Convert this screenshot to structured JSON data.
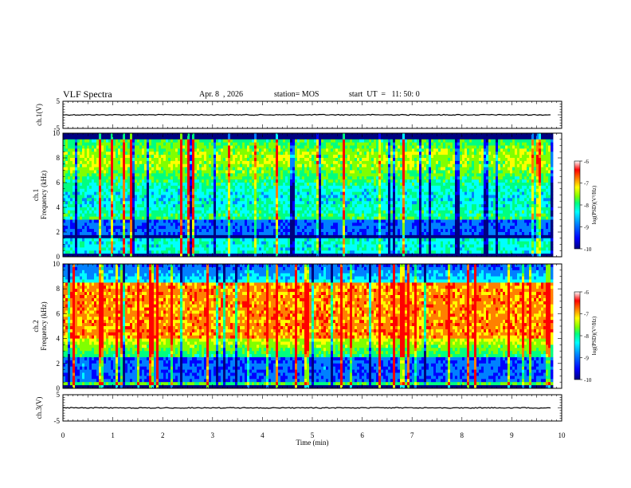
{
  "header": {
    "title": "VLF Spectra",
    "date": "Apr. 8  , 2026",
    "station": "station= MOS",
    "start": "start  UT  =   11: 50: 0"
  },
  "chart_data": [
    {
      "type": "line",
      "panel": "ch1-waveform",
      "ylabel": "ch.1(V)",
      "ylim": [
        -5,
        5
      ],
      "yticks": [
        "5",
        "-5"
      ],
      "xlim": [
        0,
        10
      ],
      "x_end": 9.8,
      "level": 0.0
    },
    {
      "type": "heatmap",
      "panel": "ch1-spectrogram",
      "ylabel": "ch.1\nFrequency (kHz)",
      "ylabel_lines": [
        "ch.1",
        "Frequency (kHz)"
      ],
      "ylim": [
        0,
        10
      ],
      "yticks": [
        "0",
        "2",
        "4",
        "6",
        "8",
        "10"
      ],
      "xlim": [
        0,
        10
      ],
      "x_end": 9.8,
      "colorbar": {
        "label": "log(PSD)(V²/Hz)",
        "ticks": [
          "-6",
          "-7",
          "-8",
          "-9",
          "-10"
        ],
        "range": [
          -10,
          -6
        ]
      }
    },
    {
      "type": "heatmap",
      "panel": "ch2-spectrogram",
      "ylabel": "ch.2\nFrequency (kHz)",
      "ylabel_lines": [
        "ch.2",
        "Frequency (kHz)"
      ],
      "ylim": [
        0,
        10
      ],
      "yticks": [
        "0",
        "2",
        "4",
        "6",
        "8",
        "10"
      ],
      "xlim": [
        0,
        10
      ],
      "x_end": 9.8,
      "colorbar": {
        "label": "log(PSD)(V²/Hz)",
        "ticks": [
          "-6",
          "-7",
          "-8",
          "-9",
          "-10"
        ],
        "range": [
          -10,
          -6
        ]
      }
    },
    {
      "type": "line",
      "panel": "ch3-waveform",
      "ylabel": "ch.3(V)",
      "ylim": [
        -5,
        5
      ],
      "yticks": [
        "5",
        "-5"
      ],
      "xlim": [
        0,
        10
      ],
      "x_end": 9.8,
      "level": 0.0
    }
  ],
  "xaxis": {
    "label": "Time  (min)",
    "ticks": [
      "0",
      "1",
      "2",
      "3",
      "4",
      "5",
      "6",
      "7",
      "8",
      "9",
      "10"
    ]
  },
  "colormap": [
    "#000080",
    "#0000ff",
    "#0080ff",
    "#00ffff",
    "#00ff80",
    "#80ff00",
    "#ffff00",
    "#ff8000",
    "#ff0000",
    "#ffffff"
  ]
}
